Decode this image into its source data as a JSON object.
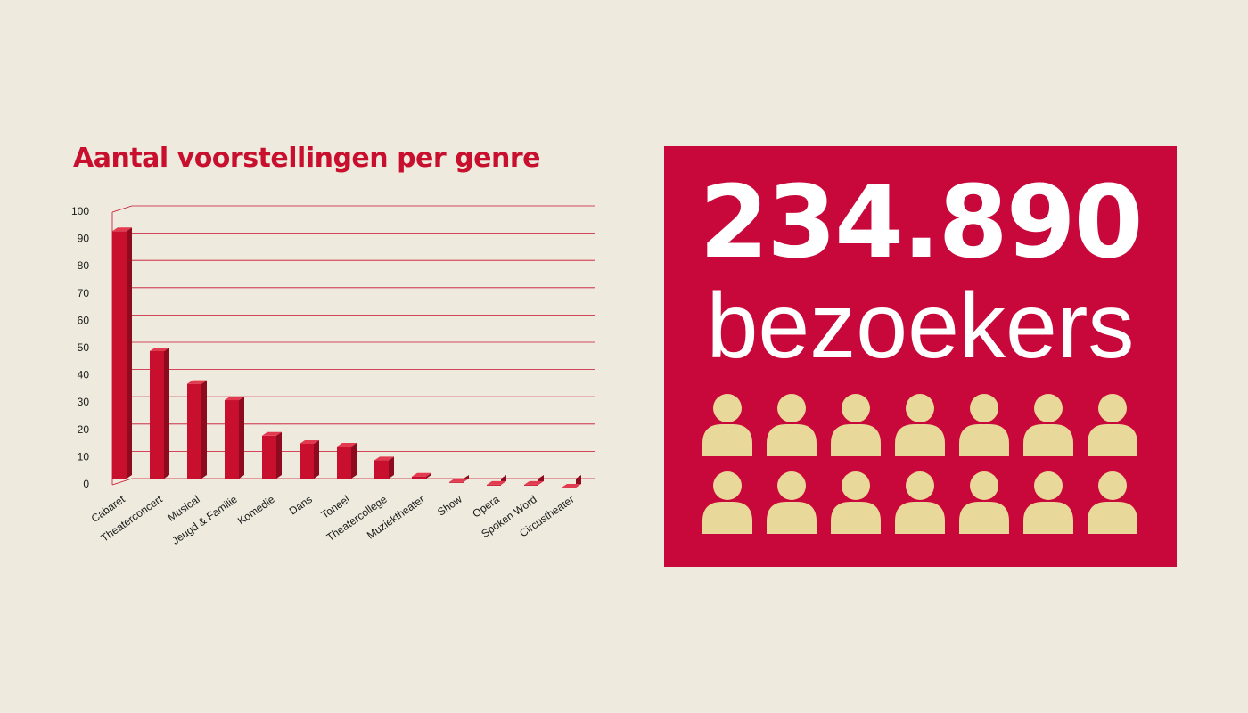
{
  "chart_data": {
    "type": "bar",
    "title": "Aantal voorstellingen per genre",
    "categories": [
      "Cabaret",
      "Theaterconcert",
      "Musical",
      "Jeugd & Familie",
      "Komedie",
      "Dans",
      "Toneel",
      "Theatercollege",
      "Muziektheater",
      "Show",
      "Opera",
      "Spoken Word",
      "Circustheater"
    ],
    "values": [
      95,
      51,
      39,
      33,
      20,
      17,
      16,
      11,
      5,
      3,
      2,
      2,
      1
    ],
    "yticks": [
      "0",
      "10",
      "20",
      "30",
      "40",
      "50",
      "60",
      "70",
      "80",
      "90",
      "100"
    ],
    "ylim": [
      0,
      100
    ],
    "grid": true,
    "xlabel": "",
    "ylabel": "",
    "bar_color": "#c8102e",
    "grid_color": "#c8102e"
  },
  "stat": {
    "number": "234.890",
    "label": "bezoekers",
    "panel_color": "#c8083a",
    "icon_color": "#e8d89a",
    "icon": "person-icon",
    "icon_count": 14
  }
}
